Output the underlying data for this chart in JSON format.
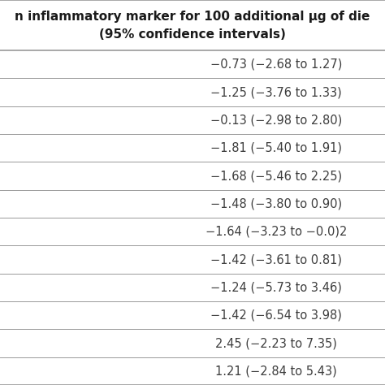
{
  "header_line1": "n inflammatory marker for 100 additional μg of die",
  "header_line2": "(95% confidence intervals)",
  "rows": [
    "−0.73 (−2.68 to 1.27)",
    "−1.25 (−3.76 to 1.33)",
    "−0.13 (−2.98 to 2.80)",
    "−1.81 (−5.40 to 1.91)",
    "−1.68 (−5.46 to 2.25)",
    "−1.48 (−3.80 to 0.90)",
    "−1.64 (−3.23 to −0.0)2",
    "−1.42 (−3.61 to 0.81)",
    "−1.24 (−5.73 to 3.46)",
    "−1.42 (−6.54 to 3.98)",
    "2.45 (−2.23 to 7.35)",
    "1.21 (−2.84 to 5.43)"
  ],
  "bg_color": "#ffffff",
  "text_color": "#3d3d3d",
  "line_color": "#999999",
  "header_fontsize": 11.0,
  "row_fontsize": 10.5
}
